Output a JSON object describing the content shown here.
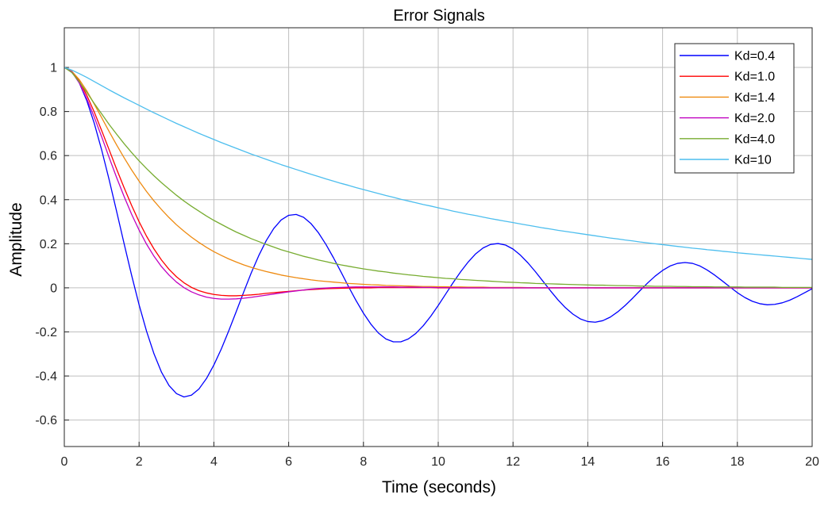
{
  "chart_data": {
    "type": "line",
    "title": "Error Signals",
    "xlabel": "Time (seconds)",
    "ylabel": "Amplitude",
    "xlim": [
      0,
      20
    ],
    "ylim": [
      -0.72,
      1.18
    ],
    "xticks": [
      0,
      2,
      4,
      6,
      8,
      10,
      12,
      14,
      16,
      18,
      20
    ],
    "yticks": [
      -0.6,
      -0.4,
      -0.2,
      0,
      0.2,
      0.4,
      0.6,
      0.8,
      1
    ],
    "grid": true,
    "legend_position": "top-right",
    "x": [
      0,
      0.2,
      0.4,
      0.6,
      0.8,
      1.0,
      1.2,
      1.4,
      1.6,
      1.8,
      2.0,
      2.2,
      2.4,
      2.6,
      2.8,
      3.0,
      3.2,
      3.4,
      3.6,
      3.8,
      4.0,
      4.2,
      4.4,
      4.6,
      4.8,
      5.0,
      5.2,
      5.4,
      5.6,
      5.8,
      6.0,
      6.2,
      6.4,
      6.6,
      6.8,
      7.0,
      7.2,
      7.4,
      7.6,
      7.8,
      8.0,
      8.2,
      8.4,
      8.6,
      8.8,
      9.0,
      9.2,
      9.4,
      9.6,
      9.8,
      10.0,
      10.2,
      10.4,
      10.6,
      10.8,
      11.0,
      11.2,
      11.4,
      11.6,
      11.8,
      12.0,
      12.2,
      12.4,
      12.6,
      12.8,
      13.0,
      13.2,
      13.4,
      13.6,
      13.8,
      14.0,
      14.2,
      14.4,
      14.6,
      14.8,
      15.0,
      15.2,
      15.4,
      15.6,
      15.8,
      16.0,
      16.2,
      16.4,
      16.6,
      16.8,
      17.0,
      17.2,
      17.4,
      17.6,
      17.8,
      18.0,
      18.2,
      18.4,
      18.6,
      18.8,
      19.0,
      19.2,
      19.4,
      19.6,
      19.8,
      20.0
    ],
    "series": [
      {
        "name": "Kd=0.4",
        "color": "#0000ff",
        "values": [
          1.0,
          0.981,
          0.93,
          0.85,
          0.747,
          0.625,
          0.49,
          0.346,
          0.2,
          0.057,
          -0.077,
          -0.197,
          -0.3,
          -0.383,
          -0.443,
          -0.48,
          -0.495,
          -0.487,
          -0.459,
          -0.412,
          -0.35,
          -0.277,
          -0.194,
          -0.107,
          -0.018,
          0.068,
          0.146,
          0.214,
          0.269,
          0.308,
          0.329,
          0.333,
          0.32,
          0.291,
          0.249,
          0.196,
          0.136,
          0.072,
          0.006,
          -0.057,
          -0.115,
          -0.165,
          -0.205,
          -0.232,
          -0.245,
          -0.245,
          -0.232,
          -0.207,
          -0.172,
          -0.129,
          -0.08,
          -0.028,
          0.024,
          0.073,
          0.117,
          0.154,
          0.181,
          0.197,
          0.201,
          0.194,
          0.176,
          0.148,
          0.113,
          0.073,
          0.03,
          -0.013,
          -0.054,
          -0.09,
          -0.119,
          -0.141,
          -0.153,
          -0.156,
          -0.149,
          -0.133,
          -0.109,
          -0.08,
          -0.047,
          -0.012,
          0.022,
          0.053,
          0.079,
          0.099,
          0.111,
          0.115,
          0.111,
          0.099,
          0.08,
          0.057,
          0.031,
          0.004,
          -0.022,
          -0.044,
          -0.061,
          -0.072,
          -0.077,
          -0.075,
          -0.068,
          -0.056,
          -0.04,
          -0.022,
          -0.004
        ]
      },
      {
        "name": "Kd=1.0",
        "color": "#ff0000",
        "values": [
          1.0,
          0.982,
          0.938,
          0.874,
          0.798,
          0.713,
          0.626,
          0.538,
          0.454,
          0.374,
          0.3,
          0.234,
          0.176,
          0.126,
          0.084,
          0.05,
          0.023,
          0.002,
          -0.013,
          -0.023,
          -0.03,
          -0.034,
          -0.036,
          -0.036,
          -0.034,
          -0.032,
          -0.029,
          -0.025,
          -0.022,
          -0.019,
          -0.016,
          -0.013,
          -0.01,
          -0.008,
          -0.006,
          -0.004,
          -0.003,
          -0.002,
          -0.001,
          -0.0,
          0.0,
          0.0,
          0.001,
          0.001,
          0.001,
          0.001,
          0.001,
          0.001,
          0.001,
          0.001,
          0.0,
          0.0,
          0.0,
          0.0,
          0.0,
          0.0,
          0.0,
          0.0,
          0.0,
          0.0,
          0.0,
          0.0,
          0.0,
          0.0,
          0.0,
          0.0,
          0.0,
          0.0,
          0.0,
          0.0,
          0.0,
          0.0,
          0.0,
          0.0,
          0.0,
          0.0,
          0.0,
          0.0,
          0.0,
          0.0,
          0.0,
          0.0,
          0.0,
          0.0,
          0.0,
          0.0,
          0.0,
          0.0,
          0.0,
          0.0,
          0.0,
          0.0,
          0.0,
          0.0,
          0.0,
          0.0,
          0.0,
          0.0,
          0.0,
          0.0,
          0.0
        ]
      },
      {
        "name": "Kd=1.4",
        "color": "#ee8a10",
        "values": [
          1.0,
          0.983,
          0.945,
          0.894,
          0.834,
          0.772,
          0.709,
          0.648,
          0.59,
          0.535,
          0.484,
          0.437,
          0.394,
          0.355,
          0.319,
          0.286,
          0.257,
          0.23,
          0.206,
          0.184,
          0.164,
          0.147,
          0.131,
          0.117,
          0.104,
          0.093,
          0.083,
          0.074,
          0.066,
          0.058,
          0.052,
          0.046,
          0.041,
          0.036,
          0.032,
          0.029,
          0.026,
          0.023,
          0.02,
          0.018,
          0.016,
          0.014,
          0.013,
          0.011,
          0.01,
          0.009,
          0.008,
          0.007,
          0.006,
          0.006,
          0.005,
          0.005,
          0.004,
          0.004,
          0.003,
          0.003,
          0.003,
          0.002,
          0.002,
          0.002,
          0.002,
          0.002,
          0.001,
          0.001,
          0.001,
          0.001,
          0.001,
          0.001,
          0.001,
          0.001,
          0.001,
          0.0,
          0.0,
          0.0,
          0.0,
          0.0,
          0.0,
          0.0,
          0.0,
          0.0,
          0.0,
          0.0,
          0.0,
          0.0,
          0.0,
          0.0,
          0.0,
          0.0,
          0.0,
          0.0,
          0.0,
          0.0,
          0.0,
          0.0,
          0.0,
          0.0,
          0.0,
          0.0,
          0.0,
          0.0,
          0.0
        ]
      },
      {
        "name": "Kd=2.0",
        "color": "#c000c0",
        "values": [
          1.0,
          0.98,
          0.93,
          0.859,
          0.775,
          0.685,
          0.591,
          0.5,
          0.414,
          0.334,
          0.262,
          0.198,
          0.143,
          0.096,
          0.058,
          0.026,
          0.001,
          -0.018,
          -0.032,
          -0.042,
          -0.048,
          -0.051,
          -0.051,
          -0.05,
          -0.047,
          -0.043,
          -0.038,
          -0.033,
          -0.028,
          -0.023,
          -0.018,
          -0.014,
          -0.01,
          -0.006,
          -0.003,
          -0.001,
          0.001,
          0.002,
          0.003,
          0.004,
          0.004,
          0.004,
          0.004,
          0.004,
          0.004,
          0.003,
          0.003,
          0.003,
          0.002,
          0.002,
          0.001,
          0.001,
          0.001,
          0.0,
          0.0,
          0.0,
          0.0,
          -0.0,
          -0.0,
          -0.0,
          -0.0,
          -0.0,
          -0.0,
          -0.0,
          -0.0,
          -0.0,
          -0.0,
          -0.0,
          -0.0,
          -0.0,
          -0.0,
          -0.0,
          -0.0,
          0.0,
          0.0,
          0.0,
          0.0,
          0.0,
          0.0,
          0.0,
          0.0,
          0.0,
          0.0,
          0.0,
          0.0,
          0.0,
          0.0,
          0.0,
          0.0,
          0.0,
          0.0,
          0.0,
          0.0,
          0.0,
          0.0,
          0.0,
          0.0,
          0.0,
          0.0,
          0.0,
          0.0
        ]
      },
      {
        "name": "Kd=4.0",
        "color": "#77ac30",
        "values": [
          1.0,
          0.977,
          0.935,
          0.887,
          0.837,
          0.789,
          0.741,
          0.697,
          0.654,
          0.614,
          0.576,
          0.541,
          0.508,
          0.477,
          0.448,
          0.42,
          0.394,
          0.37,
          0.348,
          0.326,
          0.306,
          0.288,
          0.27,
          0.253,
          0.238,
          0.223,
          0.21,
          0.197,
          0.185,
          0.173,
          0.163,
          0.153,
          0.143,
          0.135,
          0.126,
          0.119,
          0.111,
          0.104,
          0.098,
          0.092,
          0.086,
          0.081,
          0.076,
          0.072,
          0.067,
          0.063,
          0.059,
          0.056,
          0.052,
          0.049,
          0.046,
          0.043,
          0.041,
          0.038,
          0.036,
          0.034,
          0.032,
          0.03,
          0.028,
          0.026,
          0.025,
          0.023,
          0.022,
          0.02,
          0.019,
          0.018,
          0.017,
          0.016,
          0.015,
          0.014,
          0.013,
          0.012,
          0.012,
          0.011,
          0.01,
          0.01,
          0.009,
          0.008,
          0.008,
          0.007,
          0.007,
          0.007,
          0.006,
          0.006,
          0.005,
          0.005,
          0.005,
          0.004,
          0.004,
          0.004,
          0.004,
          0.003,
          0.003,
          0.003,
          0.003,
          0.003,
          0.002,
          0.002,
          0.002,
          0.002,
          0.002
        ]
      },
      {
        "name": "Kd=10",
        "color": "#4dbeee",
        "values": [
          1.0,
          0.988,
          0.972,
          0.955,
          0.936,
          0.917,
          0.898,
          0.88,
          0.862,
          0.845,
          0.828,
          0.811,
          0.794,
          0.778,
          0.762,
          0.746,
          0.731,
          0.716,
          0.701,
          0.687,
          0.673,
          0.659,
          0.646,
          0.633,
          0.62,
          0.607,
          0.595,
          0.583,
          0.571,
          0.559,
          0.548,
          0.537,
          0.526,
          0.515,
          0.505,
          0.494,
          0.484,
          0.474,
          0.465,
          0.455,
          0.446,
          0.437,
          0.428,
          0.419,
          0.411,
          0.402,
          0.394,
          0.386,
          0.378,
          0.371,
          0.363,
          0.356,
          0.348,
          0.341,
          0.334,
          0.328,
          0.321,
          0.314,
          0.308,
          0.302,
          0.296,
          0.29,
          0.284,
          0.278,
          0.272,
          0.267,
          0.261,
          0.256,
          0.251,
          0.246,
          0.241,
          0.236,
          0.231,
          0.226,
          0.222,
          0.217,
          0.213,
          0.208,
          0.204,
          0.2,
          0.196,
          0.192,
          0.188,
          0.184,
          0.18,
          0.177,
          0.173,
          0.17,
          0.166,
          0.163,
          0.159,
          0.156,
          0.153,
          0.15,
          0.147,
          0.144,
          0.141,
          0.138,
          0.135,
          0.132,
          0.129
        ]
      }
    ]
  }
}
